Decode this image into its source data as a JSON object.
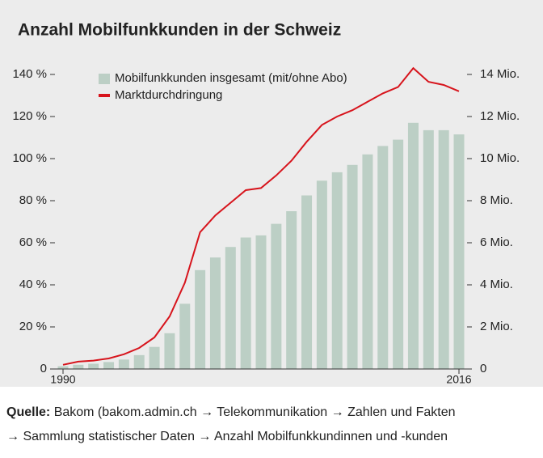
{
  "chart_data": {
    "type": "bar_line",
    "title": "Anzahl Mobilfunkkunden in der Schweiz",
    "categories": [
      "1990",
      null,
      null,
      null,
      null,
      null,
      null,
      null,
      null,
      null,
      null,
      null,
      null,
      null,
      null,
      null,
      null,
      null,
      null,
      null,
      null,
      null,
      null,
      null,
      null,
      null,
      "2016"
    ],
    "series": [
      {
        "name": "Mobilfunkkunden insgesamt (mit/ohne Abo)",
        "color": "#bccfc5",
        "axis": "y2",
        "kind": "bar",
        "values": [
          0.13,
          0.2,
          0.25,
          0.33,
          0.45,
          0.66,
          1.05,
          1.7,
          3.1,
          4.7,
          5.3,
          5.8,
          6.25,
          6.35,
          6.9,
          7.5,
          8.25,
          8.95,
          9.35,
          9.7,
          10.2,
          10.6,
          10.9,
          11.7,
          11.35,
          11.35,
          11.15
        ]
      },
      {
        "name": "Marktdurchdringung",
        "color": "#d7141c",
        "axis": "y",
        "kind": "line",
        "values": [
          2,
          3.5,
          4,
          5,
          7,
          10,
          15,
          25,
          41,
          65,
          73,
          79,
          85,
          86,
          92,
          99,
          108,
          116,
          120,
          123,
          127,
          131,
          134,
          143,
          136.5,
          135,
          132
        ]
      }
    ],
    "ylim": [
      0,
      140
    ],
    "yticks": [
      0,
      {
        "value": 20,
        "label": "20 %"
      },
      {
        "value": 40,
        "label": "40 %"
      },
      {
        "value": 60,
        "label": "60 %"
      },
      {
        "value": 80,
        "label": "80 %"
      },
      {
        "value": 100,
        "label": "100 %"
      },
      {
        "value": 120,
        "label": "120 %"
      },
      {
        "value": 140,
        "label": "140 %"
      }
    ],
    "y2lim": [
      0,
      14
    ],
    "y2ticks": [
      0,
      {
        "value": 2,
        "label": "2 Mio."
      },
      {
        "value": 4,
        "label": "4 Mio."
      },
      {
        "value": 6,
        "label": "6 Mio."
      },
      {
        "value": 8,
        "label": "8 Mio."
      },
      {
        "value": 10,
        "label": "10 Mio."
      },
      {
        "value": 12,
        "label": "12 Mio."
      },
      {
        "value": 14,
        "label": "14 Mio."
      }
    ],
    "legend": "top-left"
  },
  "source": {
    "label": "Quelle:",
    "lines": [
      "Bakom (bakom.admin.ch → Telekommunikation → Zahlen und Fakten",
      "→ Sammlung statistischer Daten → Anzahl Mobilfunkkundinnen und -kunden"
    ]
  }
}
